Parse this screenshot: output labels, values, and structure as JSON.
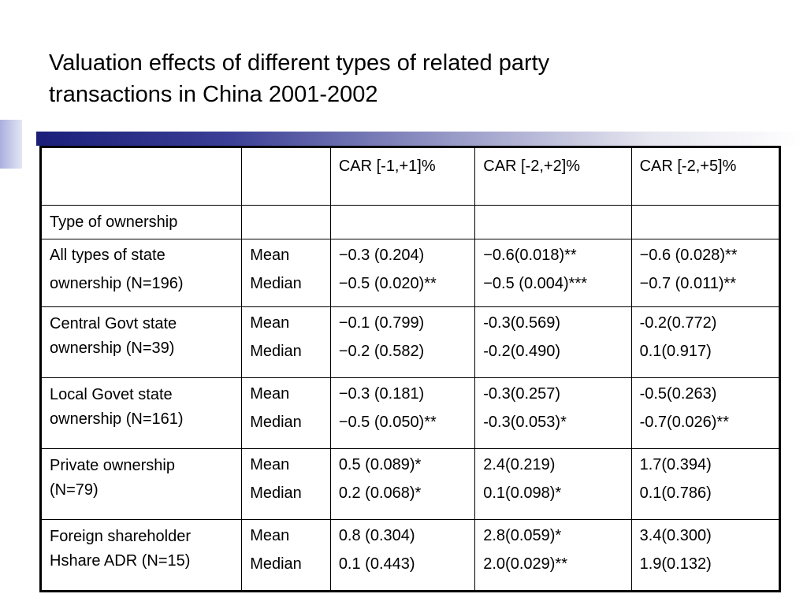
{
  "slide": {
    "title_line1": "Valuation effects of different types of related party",
    "title_line2": "transactions in China 2001-2002"
  },
  "table": {
    "headers": [
      "",
      "",
      "CAR [-1,+1]%",
      "CAR [-2,+2]%",
      "CAR [-2,+5]%"
    ],
    "section_label": "Type of ownership",
    "stat_labels": [
      "Mean",
      "Median"
    ],
    "groups": [
      {
        "label_lines": [
          "All types of state",
          "ownership (N=196)"
        ],
        "car_1_1": [
          "−0.3 (0.204)",
          "−0.5 (0.020)**"
        ],
        "car_2_2": [
          "−0.6(0.018)**",
          "−0.5 (0.004)***"
        ],
        "car_2_5": [
          "−0.6 (0.028)**",
          "−0.7 (0.011)**"
        ]
      },
      {
        "label_lines": [
          "Central Govt state",
          "ownership (N=39)"
        ],
        "car_1_1": [
          "−0.1 (0.799)",
          "−0.2 (0.582)"
        ],
        "car_2_2": [
          "-0.3(0.569)",
          "-0.2(0.490)"
        ],
        "car_2_5": [
          "-0.2(0.772)",
          "0.1(0.917)"
        ]
      },
      {
        "label_lines": [
          "Local Govet state",
          "ownership (N=161)"
        ],
        "car_1_1": [
          "−0.3 (0.181)",
          "−0.5 (0.050)**"
        ],
        "car_2_2": [
          "-0.3(0.257)",
          "-0.3(0.053)*"
        ],
        "car_2_5": [
          "-0.5(0.263)",
          "-0.7(0.026)**"
        ]
      },
      {
        "label_lines": [
          "Private ownership",
          "(N=79)"
        ],
        "car_1_1": [
          "0.5 (0.089)*",
          "0.2 (0.068)*"
        ],
        "car_2_2": [
          "2.4(0.219)",
          "0.1(0.098)*"
        ],
        "car_2_5": [
          "1.7(0.394)",
          "0.1(0.786)"
        ]
      },
      {
        "label_lines": [
          "Foreign shareholder",
          "Hshare ADR (N=15)"
        ],
        "car_1_1": [
          "0.8 (0.304)",
          "0.1 (0.443)"
        ],
        "car_2_2": [
          "2.8(0.059)*",
          "2.0(0.029)**"
        ],
        "car_2_5": [
          "3.4(0.300)",
          "1.9(0.132)"
        ]
      }
    ]
  }
}
